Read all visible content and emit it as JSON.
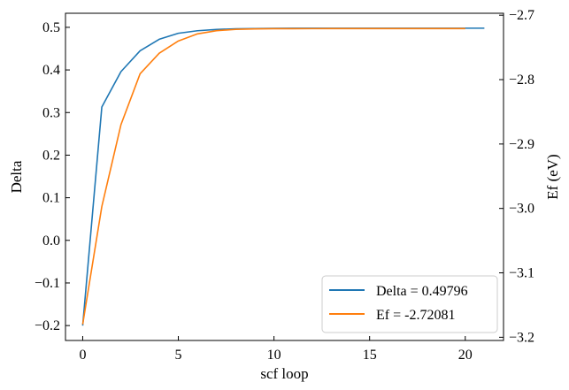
{
  "chart_data": {
    "type": "line",
    "xlabel": "scf loop",
    "ylabel_left": "Delta",
    "ylabel_right": "Ef (eV)",
    "xlim": [
      -0.9,
      22.0
    ],
    "ylim_left": [
      -0.235,
      0.533
    ],
    "ylim_right": [
      -3.205,
      -2.697
    ],
    "x_ticks": [
      0,
      5,
      10,
      15,
      20
    ],
    "x_tick_labels": [
      "0",
      "5",
      "10",
      "15",
      "20"
    ],
    "y_left_ticks": [
      -0.2,
      -0.1,
      0.0,
      0.1,
      0.2,
      0.3,
      0.4,
      0.5
    ],
    "y_left_tick_labels": [
      "−0.2",
      "−0.1",
      "0.0",
      "0.1",
      "0.2",
      "0.3",
      "0.4",
      "0.5"
    ],
    "y_right_ticks": [
      -3.2,
      -3.1,
      -3.0,
      -2.9,
      -2.8,
      -2.7
    ],
    "y_right_tick_labels": [
      "−3.2",
      "−3.1",
      "−3.0",
      "−2.9",
      "−2.8",
      "−2.7"
    ],
    "grid": false,
    "legend_position": "bottom-right",
    "series": [
      {
        "name": "Delta = 0.49796",
        "axis": "left",
        "color": "#1f77b4",
        "x": [
          0,
          1,
          2,
          3,
          4,
          5,
          6,
          7,
          8,
          9,
          10,
          11,
          12,
          13,
          14,
          15,
          16,
          17,
          18,
          19,
          20,
          21
        ],
        "y": [
          -0.2,
          0.313,
          0.396,
          0.445,
          0.472,
          0.486,
          0.492,
          0.495,
          0.4965,
          0.4972,
          0.4976,
          0.4978,
          0.4979,
          0.4979,
          0.49795,
          0.49796,
          0.49796,
          0.49796,
          0.49796,
          0.49796,
          0.49796,
          0.49796
        ]
      },
      {
        "name": "Ef = -2.72081",
        "axis": "right",
        "color": "#ff7f0e",
        "x": [
          0,
          1,
          2,
          3,
          4,
          5,
          6,
          7,
          8,
          9,
          10,
          11,
          12,
          13,
          14,
          15,
          16,
          17,
          18,
          19,
          20
        ],
        "y": [
          -3.18,
          -2.997,
          -2.87,
          -2.791,
          -2.759,
          -2.74,
          -2.729,
          -2.724,
          -2.722,
          -2.7213,
          -2.721,
          -2.7209,
          -2.72085,
          -2.72083,
          -2.72082,
          -2.72081,
          -2.72081,
          -2.72081,
          -2.72081,
          -2.72081,
          -2.72081
        ]
      }
    ]
  }
}
